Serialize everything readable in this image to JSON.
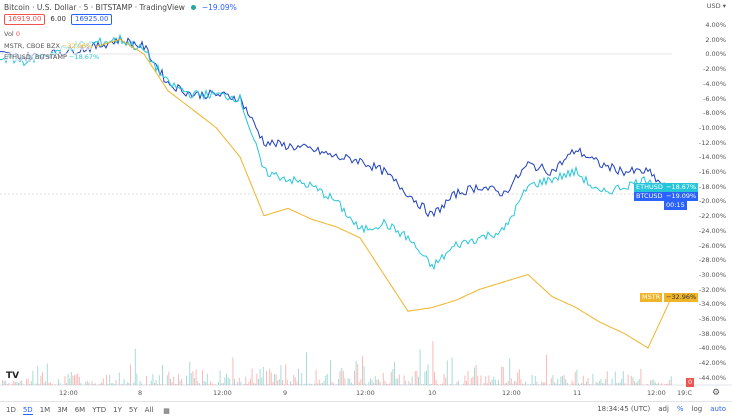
{
  "header": {
    "title": "Bitcoin · U.S. Dollar · 5 · BITSTAMP · TradingView",
    "change": "−19.09%"
  },
  "prices": {
    "sell": "16919.00",
    "spread": "6.00",
    "buy": "16925.00"
  },
  "volume": {
    "label": "Vol",
    "value": "0"
  },
  "legend": [
    {
      "name": "MSTR, CBOE BZX",
      "value": "−32.96%",
      "color": "#f0b429"
    },
    {
      "name": "ETHUSD, BITSTAMP",
      "value": "−18.67%",
      "color": "#26c6da"
    }
  ],
  "currency_menu": "USD",
  "y_ticks": [
    "4.00%",
    "2.00%",
    "0.00%",
    "-2.00%",
    "-4.00%",
    "-6.00%",
    "-8.00%",
    "-10.00%",
    "-12.00%",
    "-14.00%",
    "-16.00%",
    "-18.00%",
    "-20.00%",
    "-22.00%",
    "-24.00%",
    "-26.00%",
    "-28.00%",
    "-30.00%",
    "-32.00%",
    "-34.00%",
    "-36.00%",
    "-38.00%",
    "-40.00%",
    "-42.00%",
    "-44.00%"
  ],
  "x_ticks": [
    "12:00",
    "8",
    "12:00",
    "9",
    "12:00",
    "10",
    "12:00",
    "11",
    "12:00",
    "19:C"
  ],
  "tags": {
    "eth": {
      "sym": "ETHUSD",
      "val": "−18.67%"
    },
    "btc": {
      "sym": "BTCUSD",
      "val": "−19.09%",
      "countdown": "00:15"
    },
    "mstr": {
      "sym": "MSTR",
      "val": "−32.96%"
    },
    "vol": "0"
  },
  "chart_data": {
    "type": "line",
    "ylabel": "",
    "y_unit": "%",
    "ylim": [
      -44,
      4
    ],
    "series": [
      {
        "name": "BTCUSD",
        "color": "#1e3fbf",
        "values": [
          0,
          -0.5,
          0,
          0.5,
          1,
          2,
          1,
          -4,
          -5.5,
          -5.5,
          -6,
          -12,
          -12.5,
          -13,
          -14,
          -14.5,
          -16,
          -19,
          -22,
          -19,
          -18,
          -19,
          -15,
          -16,
          -13,
          -15,
          -16,
          -16,
          -19.09
        ]
      },
      {
        "name": "ETHUSD",
        "color": "#26c6da",
        "values": [
          -0.5,
          -1,
          0,
          1,
          1.5,
          2,
          0.5,
          -4,
          -5.5,
          -5.5,
          -6,
          -16,
          -17,
          -18,
          -20,
          -24,
          -23,
          -25,
          -29,
          -26,
          -25,
          -24,
          -18,
          -17,
          -16,
          -19,
          -18,
          -17,
          -18.67
        ]
      },
      {
        "name": "MSTR",
        "color": "#f0b429",
        "values": [
          null,
          null,
          null,
          null,
          1,
          2,
          0,
          -5,
          -7.5,
          -10,
          -14,
          -22,
          -21,
          -22.5,
          -23.5,
          -25,
          -30,
          -35,
          -34.5,
          -33.5,
          -32,
          -31,
          -30,
          -33,
          -34.5,
          -36.5,
          -38,
          -40,
          -32.96
        ]
      }
    ]
  },
  "bottom": {
    "ranges": [
      "1D",
      "5D",
      "1M",
      "3M",
      "6M",
      "YTD",
      "1Y",
      "5Y",
      "All"
    ],
    "active": "5D",
    "clock": "18:34:45 (UTC)",
    "adj": "adj",
    "pct": "%",
    "log": "log",
    "auto": "auto"
  }
}
